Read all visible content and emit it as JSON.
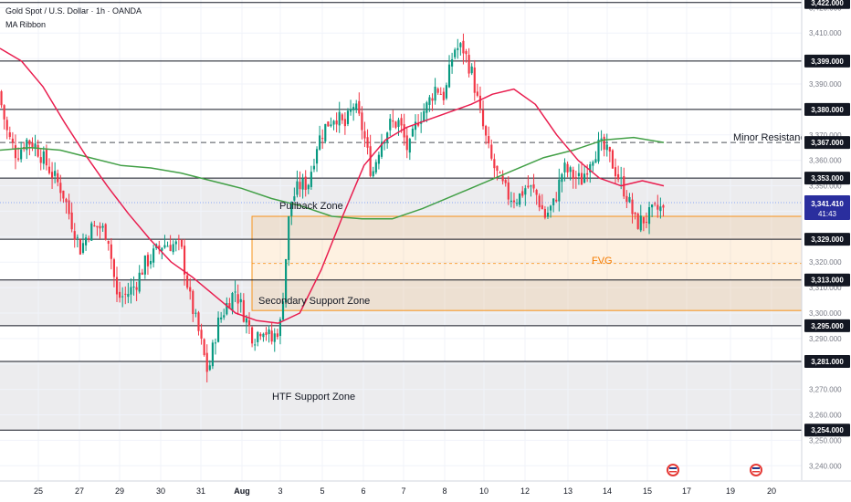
{
  "header": {
    "symbol_title": "Gold Spot / U.S. Dollar · 1h · OANDA",
    "indicator": "MA Ribbon"
  },
  "price_badge": {
    "price": "3,341.410",
    "countdown": "41:43"
  },
  "annotations": {
    "pullback_zone": "Pullback Zone",
    "secondary_support_zone": "Secondary Support Zone",
    "htf_support_zone": "HTF Support Zone",
    "fvg": "FVG",
    "minor_resistance": "Minor Resistance"
  },
  "colors": {
    "candle_up": "#089981",
    "candle_down": "#f23645",
    "level_line": "#131722",
    "ma_red": "#e91e4f",
    "ma_green": "#43a047",
    "fvg_zone": "#f7931a",
    "price_badge": "#2a2e9e",
    "zone_fill": "#ececee"
  },
  "chart_data": {
    "type": "candlestick",
    "symbol": "Gold Spot / U.S. Dollar",
    "timeframe": "1h",
    "ylim": [
      3234,
      3423
    ],
    "x_ticks": [
      "25",
      "27",
      "29",
      "30",
      "31",
      "Aug",
      "3",
      "5",
      "6",
      "7",
      "8",
      "10",
      "12",
      "13",
      "14",
      "15",
      "17",
      "19",
      "20"
    ],
    "y_ticks": [
      3240,
      3250,
      3260,
      3270,
      3280,
      3290,
      3300,
      3310,
      3320,
      3330,
      3340,
      3350,
      3360,
      3370,
      3380,
      3390,
      3400,
      3410,
      3420
    ],
    "horizontal_levels": [
      {
        "label": "3,422.000",
        "value": 3422,
        "style": "solid"
      },
      {
        "label": "3,399.000",
        "value": 3399,
        "style": "solid"
      },
      {
        "label": "3,380.000",
        "value": 3380,
        "style": "solid"
      },
      {
        "label": "3,367.000",
        "value": 3367,
        "style": "dashed"
      },
      {
        "label": "3,353.000",
        "value": 3353,
        "style": "solid"
      },
      {
        "label": "3,329.000",
        "value": 3329,
        "style": "solid"
      },
      {
        "label": "3,313.000",
        "value": 3313,
        "style": "solid"
      },
      {
        "label": "3,295.000",
        "value": 3295,
        "style": "solid"
      },
      {
        "label": "3,281.000",
        "value": 3281,
        "style": "solid"
      },
      {
        "label": "3,254.000",
        "value": 3254,
        "style": "solid"
      }
    ],
    "shaded_zones": [
      {
        "from": 3329,
        "to": 3353,
        "name": "Pullback Zone"
      },
      {
        "from": 3295,
        "to": 3313,
        "name": "Secondary Support Zone"
      },
      {
        "from": 3254,
        "to": 3281,
        "name": "HTF Support Zone"
      }
    ],
    "fvg_zone": {
      "from": 3301,
      "to": 3338,
      "mid": 3319.5,
      "label": "FVG"
    },
    "current_price": 3341.41,
    "close_path": [
      3387,
      3370,
      3362,
      3368,
      3366,
      3360,
      3354,
      3348,
      3336,
      3325,
      3333,
      3334,
      3331,
      3306,
      3307,
      3311,
      3319,
      3323,
      3327,
      3327,
      3326,
      3306,
      3292,
      3276,
      3295,
      3303,
      3309,
      3299,
      3290,
      3295,
      3289,
      3296,
      3343,
      3350,
      3351,
      3367,
      3374,
      3378,
      3373,
      3382,
      3372,
      3354,
      3368,
      3374,
      3375,
      3363,
      3376,
      3381,
      3389,
      3385,
      3404,
      3404,
      3394,
      3376,
      3361,
      3352,
      3346,
      3345,
      3350,
      3347,
      3338,
      3343,
      3357,
      3354,
      3352,
      3361,
      3366,
      3362,
      3354,
      3346,
      3335,
      3337,
      3340,
      3341.4
    ],
    "ma_red_path": [
      3404,
      3399,
      3389,
      3375,
      3362,
      3350,
      3339,
      3329,
      3320,
      3314,
      3307,
      3300,
      3297,
      3296,
      3300,
      3317,
      3338,
      3358,
      3368,
      3373,
      3376,
      3379,
      3382,
      3386,
      3388,
      3382,
      3370,
      3360,
      3353,
      3350,
      3352,
      3350
    ],
    "ma_green_path": [
      3364,
      3365,
      3364,
      3361,
      3358,
      3357,
      3355,
      3352,
      3349,
      3345,
      3342,
      3338,
      3337,
      3337,
      3341,
      3346,
      3351,
      3356,
      3361,
      3364,
      3368,
      3369,
      3367
    ],
    "ma_red_end_day": "15",
    "ma_green_end_day": "15"
  }
}
